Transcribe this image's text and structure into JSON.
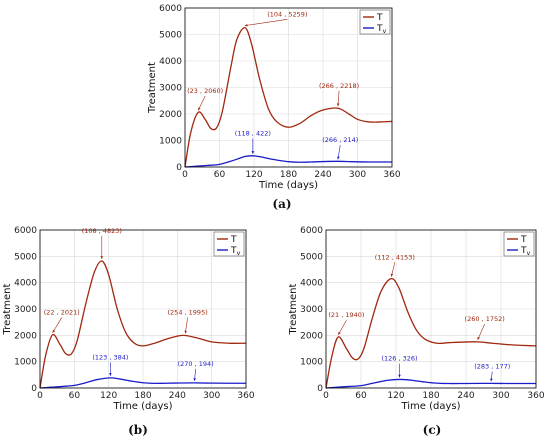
{
  "colors": {
    "T": "#a0280f",
    "Tv": "#1b1bc8",
    "grid": "#d9d9d9",
    "axis": "#000000"
  },
  "panel_letters": [
    "(a)",
    "(b)",
    "(c)"
  ],
  "chart_data": [
    {
      "type": "line",
      "panel": "(a)",
      "xlabel": "Time (days)",
      "ylabel": "Treatment",
      "xlim": [
        0,
        360
      ],
      "ylim": [
        0,
        6000
      ],
      "xticks": [
        0,
        60,
        120,
        180,
        240,
        300,
        360
      ],
      "yticks": [
        0,
        1000,
        2000,
        3000,
        4000,
        5000,
        6000
      ],
      "grid": true,
      "legend_position": "top-right",
      "series": [
        {
          "name": "T",
          "sub": "",
          "color": "#a0280f",
          "x": [
            0,
            10,
            23,
            35,
            45,
            55,
            65,
            80,
            90,
            104,
            115,
            130,
            145,
            160,
            180,
            200,
            220,
            240,
            266,
            285,
            300,
            320,
            340,
            360
          ],
          "y": [
            0,
            1300,
            2060,
            1800,
            1450,
            1480,
            2100,
            3800,
            4800,
            5259,
            4700,
            3300,
            2200,
            1700,
            1500,
            1650,
            1950,
            2150,
            2218,
            2000,
            1800,
            1700,
            1700,
            1720
          ]
        },
        {
          "name": "T",
          "sub": "v",
          "color": "#1b1bc8",
          "x": [
            0,
            20,
            40,
            60,
            80,
            95,
            105,
            118,
            130,
            145,
            160,
            180,
            200,
            220,
            240,
            266,
            290,
            320,
            360
          ],
          "y": [
            0,
            30,
            60,
            100,
            220,
            330,
            400,
            422,
            390,
            320,
            260,
            200,
            180,
            190,
            205,
            214,
            200,
            190,
            190
          ]
        }
      ],
      "annotations": [
        {
          "text": "(23 , 2060)",
          "x": 23,
          "y": 2060,
          "series": 0,
          "tx": 35,
          "ty": 2750
        },
        {
          "text": "(104 , 5259)",
          "x": 104,
          "y": 5259,
          "series": 0,
          "tx": 178,
          "ty": 5650
        },
        {
          "text": "(266 , 2218)",
          "x": 266,
          "y": 2218,
          "series": 0,
          "tx": 268,
          "ty": 2950
        },
        {
          "text": "(118 , 422)",
          "x": 118,
          "y": 422,
          "series": 1,
          "tx": 118,
          "ty": 1150
        },
        {
          "text": "(266 , 214)",
          "x": 266,
          "y": 214,
          "series": 1,
          "tx": 270,
          "ty": 900
        }
      ]
    },
    {
      "type": "line",
      "panel": "(b)",
      "xlabel": "Time (days)",
      "ylabel": "Treatment",
      "xlim": [
        0,
        360
      ],
      "ylim": [
        0,
        6000
      ],
      "xticks": [
        0,
        60,
        120,
        180,
        240,
        300,
        360
      ],
      "yticks": [
        0,
        1000,
        2000,
        3000,
        4000,
        5000,
        6000
      ],
      "grid": true,
      "legend_position": "top-right",
      "series": [
        {
          "name": "T",
          "sub": "",
          "color": "#a0280f",
          "x": [
            0,
            10,
            22,
            35,
            45,
            55,
            65,
            80,
            95,
            108,
            120,
            135,
            150,
            165,
            180,
            200,
            220,
            240,
            254,
            275,
            300,
            330,
            360
          ],
          "y": [
            0,
            1250,
            2021,
            1650,
            1300,
            1300,
            1800,
            3200,
            4400,
            4823,
            4300,
            3000,
            2100,
            1700,
            1600,
            1700,
            1850,
            1970,
            1995,
            1900,
            1750,
            1700,
            1700
          ]
        },
        {
          "name": "T",
          "sub": "v",
          "color": "#1b1bc8",
          "x": [
            0,
            20,
            40,
            60,
            80,
            100,
            123,
            140,
            160,
            180,
            200,
            220,
            245,
            270,
            300,
            330,
            360
          ],
          "y": [
            0,
            30,
            60,
            100,
            200,
            320,
            384,
            340,
            260,
            200,
            175,
            180,
            190,
            194,
            185,
            180,
            180
          ]
        }
      ],
      "annotations": [
        {
          "text": "(22 , 2021)",
          "x": 22,
          "y": 2021,
          "series": 0,
          "tx": 38,
          "ty": 2750
        },
        {
          "text": "(108 , 4823)",
          "x": 108,
          "y": 4823,
          "series": 0,
          "tx": 108,
          "ty": 5850
        },
        {
          "text": "(254 , 1995)",
          "x": 254,
          "y": 1995,
          "series": 0,
          "tx": 258,
          "ty": 2750
        },
        {
          "text": "(123 , 384)",
          "x": 123,
          "y": 384,
          "series": 1,
          "tx": 123,
          "ty": 1050
        },
        {
          "text": "(270 , 194)",
          "x": 270,
          "y": 194,
          "series": 1,
          "tx": 272,
          "ty": 800
        }
      ]
    },
    {
      "type": "line",
      "panel": "(c)",
      "xlabel": "Time (days)",
      "ylabel": "Treatment",
      "xlim": [
        0,
        360
      ],
      "ylim": [
        0,
        6000
      ],
      "xticks": [
        0,
        60,
        120,
        180,
        240,
        300,
        360
      ],
      "yticks": [
        0,
        1000,
        2000,
        3000,
        4000,
        5000,
        6000
      ],
      "grid": true,
      "legend_position": "top-right",
      "series": [
        {
          "name": "T",
          "sub": "",
          "color": "#a0280f",
          "x": [
            0,
            10,
            21,
            35,
            45,
            55,
            65,
            80,
            95,
            112,
            125,
            140,
            155,
            170,
            190,
            210,
            230,
            260,
            285,
            310,
            335,
            360
          ],
          "y": [
            0,
            1200,
            1940,
            1500,
            1150,
            1100,
            1500,
            2700,
            3700,
            4153,
            3800,
            2900,
            2200,
            1850,
            1700,
            1720,
            1740,
            1752,
            1700,
            1650,
            1620,
            1600
          ]
        },
        {
          "name": "T",
          "sub": "v",
          "color": "#1b1bc8",
          "x": [
            0,
            20,
            40,
            60,
            80,
            105,
            126,
            145,
            165,
            185,
            210,
            240,
            265,
            283,
            310,
            335,
            360
          ],
          "y": [
            0,
            30,
            60,
            90,
            180,
            290,
            326,
            300,
            240,
            190,
            170,
            172,
            175,
            177,
            172,
            170,
            170
          ]
        }
      ],
      "annotations": [
        {
          "text": "(21 , 1940)",
          "x": 21,
          "y": 1940,
          "series": 0,
          "tx": 35,
          "ty": 2650
        },
        {
          "text": "(112 , 4153)",
          "x": 112,
          "y": 4153,
          "series": 0,
          "tx": 118,
          "ty": 4850
        },
        {
          "text": "(260 , 1752)",
          "x": 260,
          "y": 1752,
          "series": 0,
          "tx": 272,
          "ty": 2500
        },
        {
          "text": "(126 , 326)",
          "x": 126,
          "y": 326,
          "series": 1,
          "tx": 126,
          "ty": 1000
        },
        {
          "text": "(283 , 177)",
          "x": 283,
          "y": 177,
          "series": 1,
          "tx": 285,
          "ty": 700
        }
      ]
    }
  ]
}
